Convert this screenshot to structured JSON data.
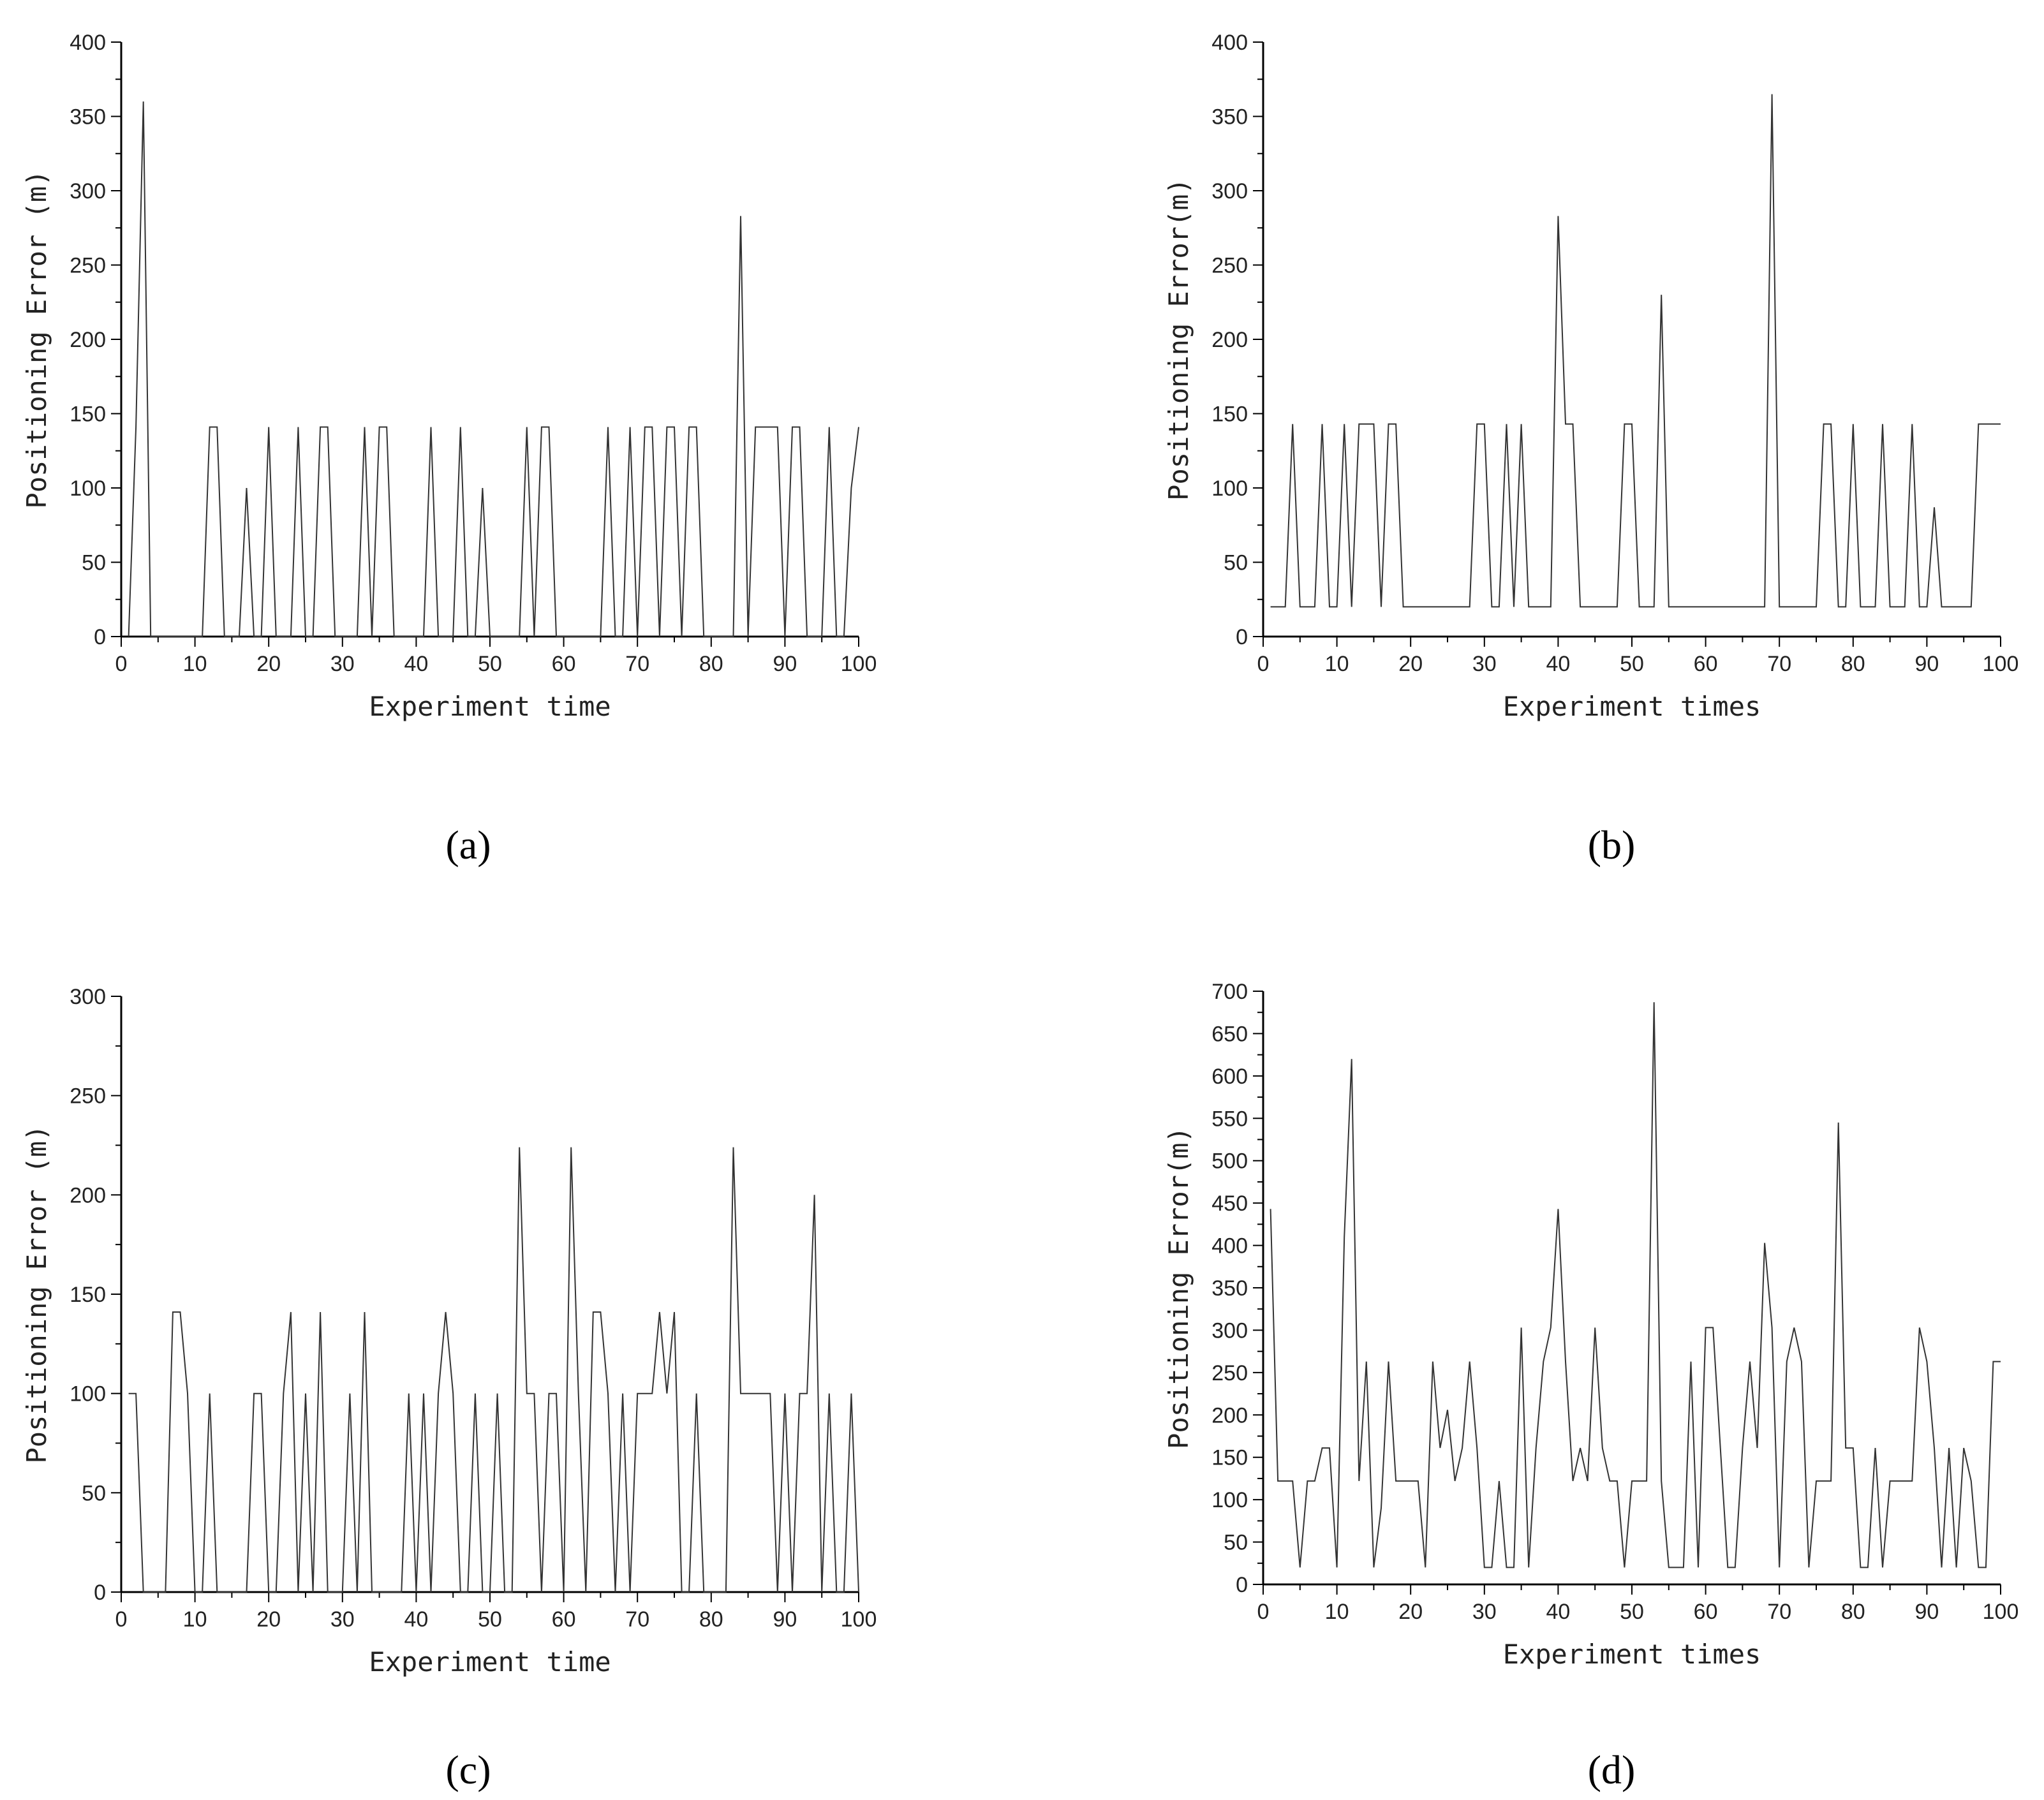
{
  "panel_labels": [
    "(a)",
    "(b)",
    "(c)",
    "(d)"
  ],
  "chart_data": [
    {
      "type": "line",
      "panel": "(a)",
      "xlabel": "Experiment time",
      "ylabel": "Positioning Error (m)",
      "xlim": [
        0,
        100
      ],
      "ylim": [
        0,
        400
      ],
      "xticks": [
        0,
        10,
        20,
        30,
        40,
        50,
        60,
        70,
        80,
        90,
        100
      ],
      "yticks": [
        0,
        50,
        100,
        150,
        200,
        250,
        300,
        350,
        400
      ],
      "x": [
        1,
        2,
        3,
        4,
        5,
        6,
        7,
        8,
        9,
        10,
        11,
        12,
        13,
        14,
        15,
        16,
        17,
        18,
        19,
        20,
        21,
        22,
        23,
        24,
        25,
        26,
        27,
        28,
        29,
        30,
        31,
        32,
        33,
        34,
        35,
        36,
        37,
        38,
        39,
        40,
        41,
        42,
        43,
        44,
        45,
        46,
        47,
        48,
        49,
        50,
        51,
        52,
        53,
        54,
        55,
        56,
        57,
        58,
        59,
        60,
        61,
        62,
        63,
        64,
        65,
        66,
        67,
        68,
        69,
        70,
        71,
        72,
        73,
        74,
        75,
        76,
        77,
        78,
        79,
        80,
        81,
        82,
        83,
        84,
        85,
        86,
        87,
        88,
        89,
        90,
        91,
        92,
        93,
        94,
        95,
        96,
        97,
        98,
        99,
        100
      ],
      "y": [
        0,
        141,
        360,
        0,
        0,
        0,
        0,
        0,
        0,
        0,
        0,
        141,
        141,
        0,
        0,
        0,
        100,
        0,
        0,
        141,
        0,
        0,
        0,
        141,
        0,
        0,
        141,
        141,
        0,
        0,
        0,
        0,
        141,
        0,
        141,
        141,
        0,
        0,
        0,
        0,
        0,
        141,
        0,
        0,
        0,
        141,
        0,
        0,
        100,
        0,
        0,
        0,
        0,
        0,
        141,
        0,
        141,
        141,
        0,
        0,
        0,
        0,
        0,
        0,
        0,
        141,
        0,
        0,
        141,
        0,
        141,
        141,
        0,
        141,
        141,
        0,
        141,
        141,
        0,
        0,
        0,
        0,
        0,
        283,
        0,
        141,
        141,
        141,
        141,
        0,
        141,
        141,
        0,
        0,
        0,
        141,
        0,
        0,
        100,
        141
      ]
    },
    {
      "type": "line",
      "panel": "(b)",
      "xlabel": "Experiment times",
      "ylabel": "Positioning Error(m)",
      "xlim": [
        0,
        100
      ],
      "ylim": [
        0,
        400
      ],
      "xticks": [
        0,
        10,
        20,
        30,
        40,
        50,
        60,
        70,
        80,
        90,
        100
      ],
      "yticks": [
        0,
        50,
        100,
        150,
        200,
        250,
        300,
        350,
        400
      ],
      "x": [
        1,
        2,
        3,
        4,
        5,
        6,
        7,
        8,
        9,
        10,
        11,
        12,
        13,
        14,
        15,
        16,
        17,
        18,
        19,
        20,
        21,
        22,
        23,
        24,
        25,
        26,
        27,
        28,
        29,
        30,
        31,
        32,
        33,
        34,
        35,
        36,
        37,
        38,
        39,
        40,
        41,
        42,
        43,
        44,
        45,
        46,
        47,
        48,
        49,
        50,
        51,
        52,
        53,
        54,
        55,
        56,
        57,
        58,
        59,
        60,
        61,
        62,
        63,
        64,
        65,
        66,
        67,
        68,
        69,
        70,
        71,
        72,
        73,
        74,
        75,
        76,
        77,
        78,
        79,
        80,
        81,
        82,
        83,
        84,
        85,
        86,
        87,
        88,
        89,
        90,
        91,
        92,
        93,
        94,
        95,
        96,
        97,
        98,
        99,
        100
      ],
      "y": [
        20,
        20,
        20,
        143,
        20,
        20,
        20,
        143,
        20,
        20,
        143,
        20,
        143,
        143,
        143,
        20,
        143,
        143,
        20,
        20,
        20,
        20,
        20,
        20,
        20,
        20,
        20,
        20,
        143,
        143,
        20,
        20,
        143,
        20,
        143,
        20,
        20,
        20,
        20,
        283,
        143,
        143,
        20,
        20,
        20,
        20,
        20,
        20,
        143,
        143,
        20,
        20,
        20,
        230,
        20,
        20,
        20,
        20,
        20,
        20,
        20,
        20,
        20,
        20,
        20,
        20,
        20,
        20,
        365,
        20,
        20,
        20,
        20,
        20,
        20,
        143,
        143,
        20,
        20,
        143,
        20,
        20,
        20,
        143,
        20,
        20,
        20,
        143,
        20,
        20,
        87,
        20,
        20,
        20,
        20,
        20,
        143,
        143,
        143,
        143
      ]
    },
    {
      "type": "line",
      "panel": "(c)",
      "xlabel": "Experiment time",
      "ylabel": "Positioning Error (m)",
      "xlim": [
        0,
        100
      ],
      "ylim": [
        0,
        300
      ],
      "xticks": [
        0,
        10,
        20,
        30,
        40,
        50,
        60,
        70,
        80,
        90,
        100
      ],
      "yticks": [
        0,
        50,
        100,
        150,
        200,
        250,
        300
      ],
      "x": [
        1,
        2,
        3,
        4,
        5,
        6,
        7,
        8,
        9,
        10,
        11,
        12,
        13,
        14,
        15,
        16,
        17,
        18,
        19,
        20,
        21,
        22,
        23,
        24,
        25,
        26,
        27,
        28,
        29,
        30,
        31,
        32,
        33,
        34,
        35,
        36,
        37,
        38,
        39,
        40,
        41,
        42,
        43,
        44,
        45,
        46,
        47,
        48,
        49,
        50,
        51,
        52,
        53,
        54,
        55,
        56,
        57,
        58,
        59,
        60,
        61,
        62,
        63,
        64,
        65,
        66,
        67,
        68,
        69,
        70,
        71,
        72,
        73,
        74,
        75,
        76,
        77,
        78,
        79,
        80,
        81,
        82,
        83,
        84,
        85,
        86,
        87,
        88,
        89,
        90,
        91,
        92,
        93,
        94,
        95,
        96,
        97,
        98,
        99,
        100
      ],
      "y": [
        100,
        100,
        0,
        0,
        0,
        0,
        141,
        141,
        100,
        0,
        0,
        100,
        0,
        0,
        0,
        0,
        0,
        100,
        100,
        0,
        0,
        100,
        141,
        0,
        100,
        0,
        141,
        0,
        0,
        0,
        100,
        0,
        141,
        0,
        0,
        0,
        0,
        0,
        100,
        0,
        100,
        0,
        100,
        141,
        100,
        0,
        0,
        100,
        0,
        0,
        100,
        0,
        0,
        224,
        100,
        100,
        0,
        100,
        100,
        0,
        224,
        100,
        0,
        141,
        141,
        100,
        0,
        100,
        0,
        100,
        100,
        100,
        141,
        100,
        141,
        0,
        0,
        100,
        0,
        0,
        0,
        0,
        224,
        100,
        100,
        100,
        100,
        100,
        0,
        100,
        0,
        100,
        100,
        200,
        0,
        100,
        0,
        0,
        100,
        0
      ]
    },
    {
      "type": "line",
      "panel": "(d)",
      "xlabel": "Experiment times",
      "ylabel": "Positioning Error(m)",
      "xlim": [
        0,
        100
      ],
      "ylim": [
        0,
        700
      ],
      "xticks": [
        0,
        10,
        20,
        30,
        40,
        50,
        60,
        70,
        80,
        90,
        100
      ],
      "yticks": [
        0,
        50,
        100,
        150,
        200,
        250,
        300,
        350,
        400,
        450,
        500,
        550,
        600,
        650,
        700
      ],
      "x": [
        1,
        2,
        3,
        4,
        5,
        6,
        7,
        8,
        9,
        10,
        11,
        12,
        13,
        14,
        15,
        16,
        17,
        18,
        19,
        20,
        21,
        22,
        23,
        24,
        25,
        26,
        27,
        28,
        29,
        30,
        31,
        32,
        33,
        34,
        35,
        36,
        37,
        38,
        39,
        40,
        41,
        42,
        43,
        44,
        45,
        46,
        47,
        48,
        49,
        50,
        51,
        52,
        53,
        54,
        55,
        56,
        57,
        58,
        59,
        60,
        61,
        62,
        63,
        64,
        65,
        66,
        67,
        68,
        69,
        70,
        71,
        72,
        73,
        74,
        75,
        76,
        77,
        78,
        79,
        80,
        81,
        82,
        83,
        84,
        85,
        86,
        87,
        88,
        89,
        90,
        91,
        92,
        93,
        94,
        95,
        96,
        97,
        98,
        99,
        100
      ],
      "y": [
        443,
        122,
        122,
        122,
        20,
        122,
        122,
        161,
        161,
        20,
        410,
        620,
        122,
        263,
        20,
        90,
        263,
        122,
        122,
        122,
        122,
        20,
        263,
        161,
        206,
        122,
        161,
        263,
        161,
        20,
        20,
        122,
        20,
        20,
        303,
        20,
        161,
        263,
        303,
        443,
        263,
        122,
        161,
        122,
        303,
        161,
        122,
        122,
        20,
        122,
        122,
        122,
        687,
        122,
        20,
        20,
        20,
        263,
        20,
        303,
        303,
        161,
        20,
        20,
        161,
        263,
        161,
        403,
        303,
        20,
        263,
        303,
        263,
        20,
        122,
        122,
        122,
        545,
        161,
        161,
        20,
        20,
        161,
        20,
        122,
        122,
        122,
        122,
        303,
        263,
        161,
        20,
        161,
        20,
        161,
        122,
        20,
        20,
        263,
        263
      ]
    }
  ]
}
